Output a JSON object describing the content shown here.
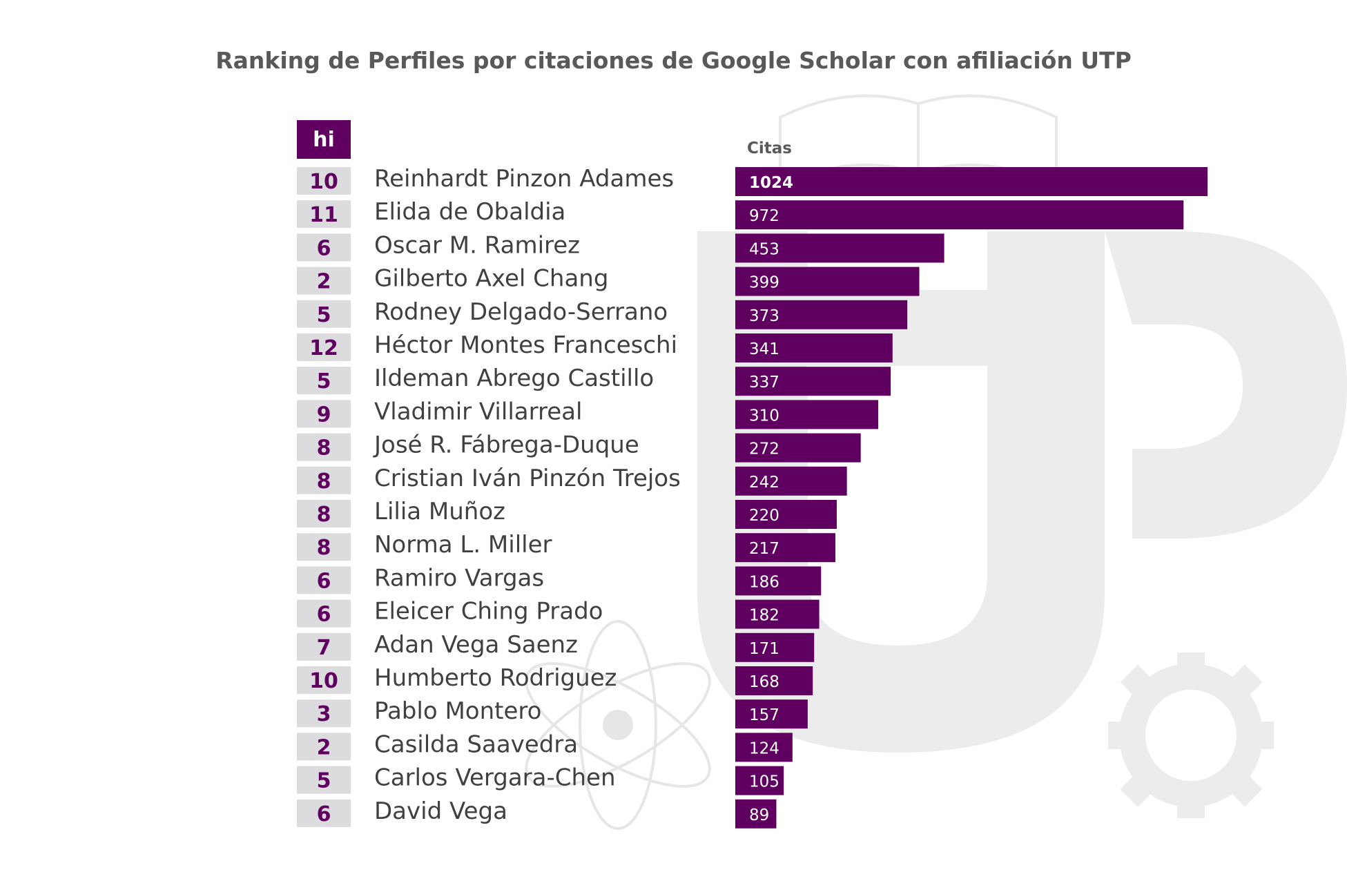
{
  "chart_data": {
    "type": "bar",
    "orientation": "horizontal",
    "title": "Ranking de Perfiles por citaciones de Google Scholar con afiliación UTP",
    "hi_header": "hi",
    "value_header": "Citas",
    "categories": [
      "Reinhardt Pinzon Adames",
      "Elida de Obaldia",
      "Oscar M. Ramirez",
      "Gilberto Axel Chang",
      "Rodney Delgado-Serrano",
      "Héctor Montes Franceschi",
      "Ildeman   Abrego   Castillo",
      "Vladimir Villarreal",
      "José R. Fábrega-Duque",
      "Cristian Iván Pinzón Trejos",
      "Lilia Muñoz",
      "Norma L. Miller",
      "Ramiro Vargas",
      "Eleicer Ching Prado",
      "Adan Vega Saenz",
      "Humberto Rodriguez",
      "Pablo Montero",
      "Casilda Saavedra",
      "Carlos Vergara-Chen",
      "David Vega"
    ],
    "hi": [
      "10",
      "11",
      "6",
      "2",
      "5",
      "12",
      "5",
      "9",
      "8",
      "8",
      "8",
      "8",
      "6",
      "6",
      "7",
      "10",
      "3",
      "2",
      "5",
      "6"
    ],
    "values": [
      1024,
      972,
      453,
      399,
      373,
      341,
      337,
      310,
      272,
      242,
      220,
      217,
      186,
      182,
      171,
      168,
      157,
      124,
      105,
      89
    ],
    "value_labels": [
      "1024",
      "972",
      "453",
      "399",
      "373",
      "341",
      "337",
      "310",
      "272",
      "242",
      "220",
      "217",
      "186",
      "182",
      "171",
      "168",
      "157",
      "124",
      "105",
      "89"
    ],
    "xlim": [
      0,
      1024
    ],
    "grid": false,
    "colors": {
      "bar": "#5f0060",
      "hi_box": "#dcdcdf",
      "hi_text": "#5f0060",
      "watermark": "#ebebeb"
    }
  }
}
